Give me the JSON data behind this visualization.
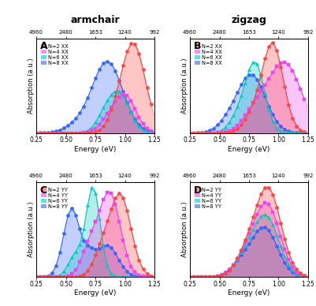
{
  "title_left": "armchair",
  "title_right": "zigzag",
  "panel_labels": [
    "A",
    "B",
    "C",
    "D"
  ],
  "legend_XX": [
    "N=2 XX",
    "N=4 XX",
    "N=6 XX",
    "N=8 XX"
  ],
  "legend_YY": [
    "N=2 YY",
    "N=4 YY",
    "N=6 YY",
    "N=8 YY"
  ],
  "color_N2": "#ff4444",
  "color_N4": "#ee44ee",
  "color_N6": "#00ccbb",
  "color_N8": "#3366ff",
  "fill_alpha": 0.3,
  "xlabel": "Energy (eV)",
  "ylabel": "Absorption (a.u.)",
  "xmin": 0.25,
  "xmax": 1.25,
  "top_ticks": [
    4960,
    2480,
    1653,
    1240,
    992
  ],
  "top_tick_positions": [
    0.25,
    0.5,
    0.75,
    1.0,
    1.25
  ],
  "background": "#ffffff"
}
